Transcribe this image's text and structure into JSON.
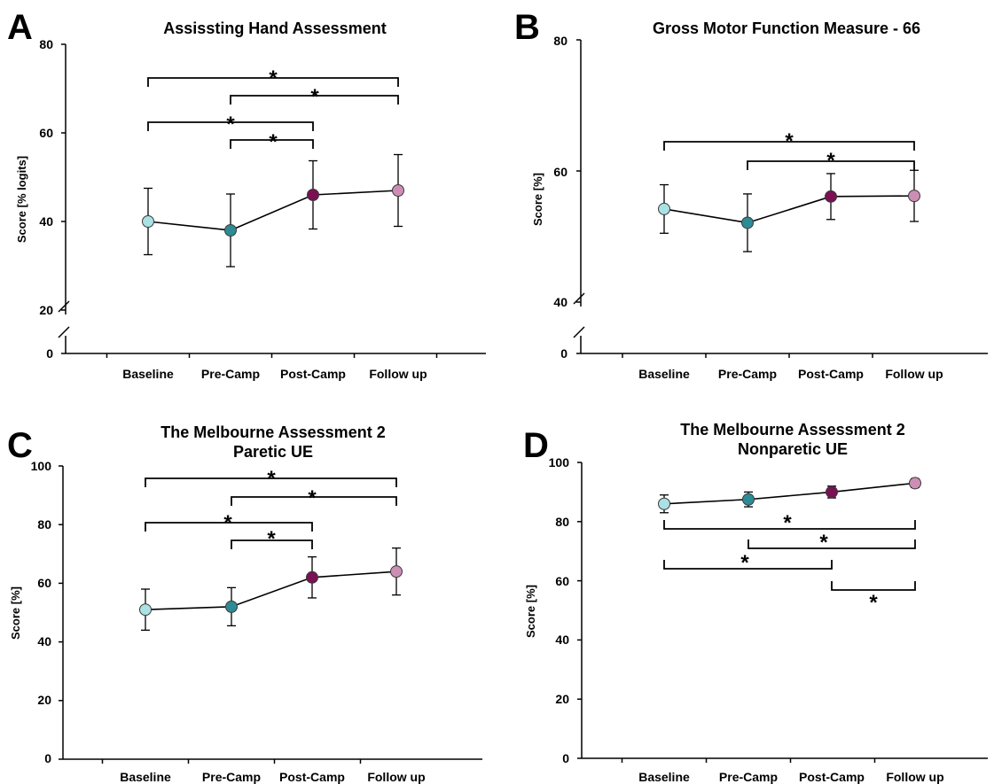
{
  "colors": {
    "baseline": "#a9e1e4",
    "pre_camp": "#2d8b96",
    "post_camp": "#7a1152",
    "follow_up": "#cd8eb4",
    "axis": "#000000"
  },
  "chart_data": [
    {
      "panel": "A",
      "type": "line",
      "title": "Assissting Hand Assessment",
      "title_line2": "",
      "ylabel": "Score [% logits]",
      "categories": [
        "Baseline",
        "Pre-Camp",
        "Post-Camp",
        "Follow up"
      ],
      "values": [
        40,
        38,
        46,
        47
      ],
      "error": [
        7.5,
        8.2,
        7.7,
        8.1
      ],
      "y_ticks": [
        "80",
        "60",
        "40",
        "20",
        "0"
      ],
      "axis_break": true,
      "ylim": [
        20,
        80
      ],
      "grid": false,
      "significance": [
        {
          "from": 0,
          "to": 3,
          "label": "*"
        },
        {
          "from": 1,
          "to": 3,
          "label": "*"
        },
        {
          "from": 0,
          "to": 2,
          "label": "*"
        },
        {
          "from": 1,
          "to": 2,
          "label": "*"
        }
      ]
    },
    {
      "panel": "B",
      "type": "line",
      "title": "Gross Motor Function Measure - 66",
      "title_line2": "",
      "ylabel": "Score [%]",
      "categories": [
        "Baseline",
        "Pre-Camp",
        "Post-Camp",
        "Follow up"
      ],
      "values": [
        54.2,
        52.1,
        56.1,
        56.2
      ],
      "error": [
        3.7,
        4.4,
        3.5,
        3.9
      ],
      "y_ticks": [
        "80",
        "60",
        "40",
        "0"
      ],
      "axis_break": true,
      "ylim": [
        40,
        80
      ],
      "grid": false,
      "significance": [
        {
          "from": 0,
          "to": 3,
          "label": "*"
        },
        {
          "from": 1,
          "to": 3,
          "label": "*"
        }
      ]
    },
    {
      "panel": "C",
      "type": "line",
      "title": "The Melbourne Assessment 2",
      "title_line2": "Paretic UE",
      "ylabel": "Score [%]",
      "categories": [
        "Baseline",
        "Pre-Camp",
        "Post-Camp",
        "Follow up"
      ],
      "values": [
        51,
        52,
        62,
        64
      ],
      "error": [
        7,
        6.5,
        7,
        8
      ],
      "y_ticks": [
        "100",
        "80",
        "60",
        "40",
        "20",
        "0"
      ],
      "axis_break": false,
      "ylim": [
        0,
        100
      ],
      "grid": false,
      "significance": [
        {
          "from": 0,
          "to": 3,
          "label": "*"
        },
        {
          "from": 1,
          "to": 3,
          "label": "*"
        },
        {
          "from": 0,
          "to": 2,
          "label": "*"
        },
        {
          "from": 1,
          "to": 2,
          "label": "*"
        }
      ]
    },
    {
      "panel": "D",
      "type": "line",
      "title": "The Melbourne Assessment 2",
      "title_line2": "Nonparetic UE",
      "ylabel": "Score [%]",
      "categories": [
        "Baseline",
        "Pre-Camp",
        "Post-Camp",
        "Follow up"
      ],
      "values": [
        86,
        87.5,
        90,
        93
      ],
      "error": [
        3,
        2.5,
        2,
        1.5
      ],
      "y_ticks": [
        "100",
        "80",
        "60",
        "40",
        "20",
        "0"
      ],
      "axis_break": false,
      "ylim": [
        0,
        100
      ],
      "grid": false,
      "significance": [
        {
          "from": 0,
          "to": 3,
          "label": "*"
        },
        {
          "from": 1,
          "to": 3,
          "label": "*"
        },
        {
          "from": 0,
          "to": 2,
          "label": "*"
        },
        {
          "from": 2,
          "to": 3,
          "label": "*"
        }
      ]
    }
  ]
}
